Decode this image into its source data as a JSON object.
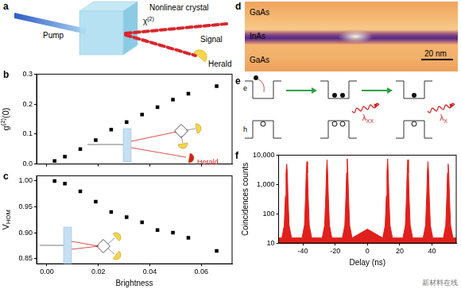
{
  "panel_labels": [
    "a",
    "b",
    "c",
    "d",
    "e",
    "f"
  ],
  "panel_a": {
    "type": "diagram",
    "pump": "Pump",
    "crystal": "Nonlinear crystal",
    "susceptibility": {
      "text": "χ",
      "superscript": "(2)"
    },
    "signal": "Signal",
    "herald": "Herald"
  },
  "panel_d": {
    "type": "image",
    "layers": [
      "GaAs",
      "InAs",
      "GaAs"
    ],
    "scale_bar": "20 nm"
  },
  "panel_e": {
    "type": "diagram",
    "carriers": [
      "e",
      "h"
    ],
    "photons": [
      {
        "text": "λ",
        "subscript": "XX"
      },
      {
        "text": "λ",
        "subscript": "X"
      }
    ]
  },
  "chart_data": [
    {
      "type": "scatter",
      "x": [
        0.003,
        0.007,
        0.013,
        0.019,
        0.025,
        0.031,
        0.037,
        0.043,
        0.049,
        0.055,
        0.066
      ],
      "values": [
        0.01,
        0.025,
        0.05,
        0.08,
        0.115,
        0.14,
        0.165,
        0.19,
        0.215,
        0.235,
        0.26
      ],
      "color": "#000000",
      "marker": "square",
      "xlim": [
        -0.004,
        0.072
      ],
      "xticks": [
        {
          "value": 0,
          "label": "0.00"
        },
        0.02,
        0.04,
        0.06
      ],
      "ylim": [
        0,
        0.3
      ],
      "yticks": [
        {
          "value": 0,
          "label": "0.0"
        },
        0.1,
        0.2,
        0.3
      ],
      "ylabel": {
        "text": "g",
        "superscript": "(2)",
        "suffix": "(0)"
      },
      "tick_labels": "y",
      "grid": false,
      "annotations": [
        {
          "text": "Herald",
          "color": "#d42020"
        }
      ]
    },
    {
      "type": "scatter",
      "x": [
        0.003,
        0.007,
        0.013,
        0.019,
        0.025,
        0.031,
        0.037,
        0.043,
        0.049,
        0.055,
        0.066
      ],
      "values": [
        1.0,
        0.995,
        0.98,
        0.96,
        0.94,
        0.93,
        0.92,
        0.905,
        0.9,
        0.89,
        0.865
      ],
      "color": "#000000",
      "marker": "square",
      "xlim": [
        -0.004,
        0.072
      ],
      "xticks": [
        {
          "value": 0,
          "label": "0.00"
        },
        0.02,
        0.04,
        0.06
      ],
      "ylim": [
        0.84,
        1.01
      ],
      "yticks": [
        0.85,
        {
          "value": 0.9,
          "label": "0.90"
        },
        0.95,
        {
          "value": 1,
          "label": "1.00"
        }
      ],
      "xlabel": "Brightness",
      "ylabel": {
        "text": "V",
        "subscript": "HOM"
      },
      "grid": false
    },
    {
      "type": "area",
      "x": [
        -55,
        -53,
        -51.5,
        -50.8,
        -50.4,
        -50,
        -49.6,
        -49.2,
        -48.5,
        -47,
        -40.5,
        -39,
        -38.3,
        -37.9,
        -37.5,
        -37.1,
        -36.7,
        -36,
        -34.5,
        -28,
        -26.5,
        -25.8,
        -25.4,
        -25,
        -24.6,
        -24.2,
        -23.5,
        -22,
        -15.5,
        -14,
        -13.3,
        -12.9,
        -12.5,
        -12.1,
        -11.7,
        -11,
        -9.5,
        0,
        9.5,
        11,
        11.7,
        12.1,
        12.5,
        12.9,
        13.3,
        14,
        15.5,
        22,
        23.5,
        24.2,
        24.6,
        25,
        25.4,
        25.8,
        26.5,
        28,
        34.5,
        36,
        36.7,
        37.1,
        37.5,
        37.9,
        38.3,
        39,
        40.5,
        47,
        48.5,
        49.2,
        49.6,
        50,
        50.4,
        50.8,
        51.5,
        53,
        55
      ],
      "values": [
        15,
        15,
        40,
        400,
        2500,
        5000,
        2500,
        400,
        40,
        15,
        15,
        40,
        400,
        2500,
        6000,
        2500,
        400,
        40,
        15,
        15,
        40,
        400,
        2500,
        7000,
        2500,
        400,
        40,
        15,
        15,
        40,
        400,
        2500,
        7500,
        2500,
        400,
        40,
        15,
        30,
        15,
        40,
        400,
        2500,
        7500,
        2500,
        400,
        40,
        15,
        15,
        40,
        400,
        2500,
        7000,
        2500,
        400,
        40,
        15,
        15,
        40,
        400,
        2500,
        6000,
        2500,
        400,
        40,
        15,
        15,
        40,
        400,
        2500,
        5000,
        2500,
        400,
        40,
        15,
        15
      ],
      "color": "#e0201c",
      "log": "y",
      "xlim": [
        -55,
        55
      ],
      "xticks": [
        -40,
        -20,
        0,
        20,
        40
      ],
      "ylim": [
        10,
        10000
      ],
      "yticks": [
        10,
        100,
        {
          "value": 1000,
          "label": "1,000"
        },
        {
          "value": 10000,
          "label": "10,000"
        }
      ],
      "xlabel": "Delay (ns)",
      "ylabel": "Coincidences counts",
      "grid": false
    }
  ],
  "watermark": "新材料在线"
}
